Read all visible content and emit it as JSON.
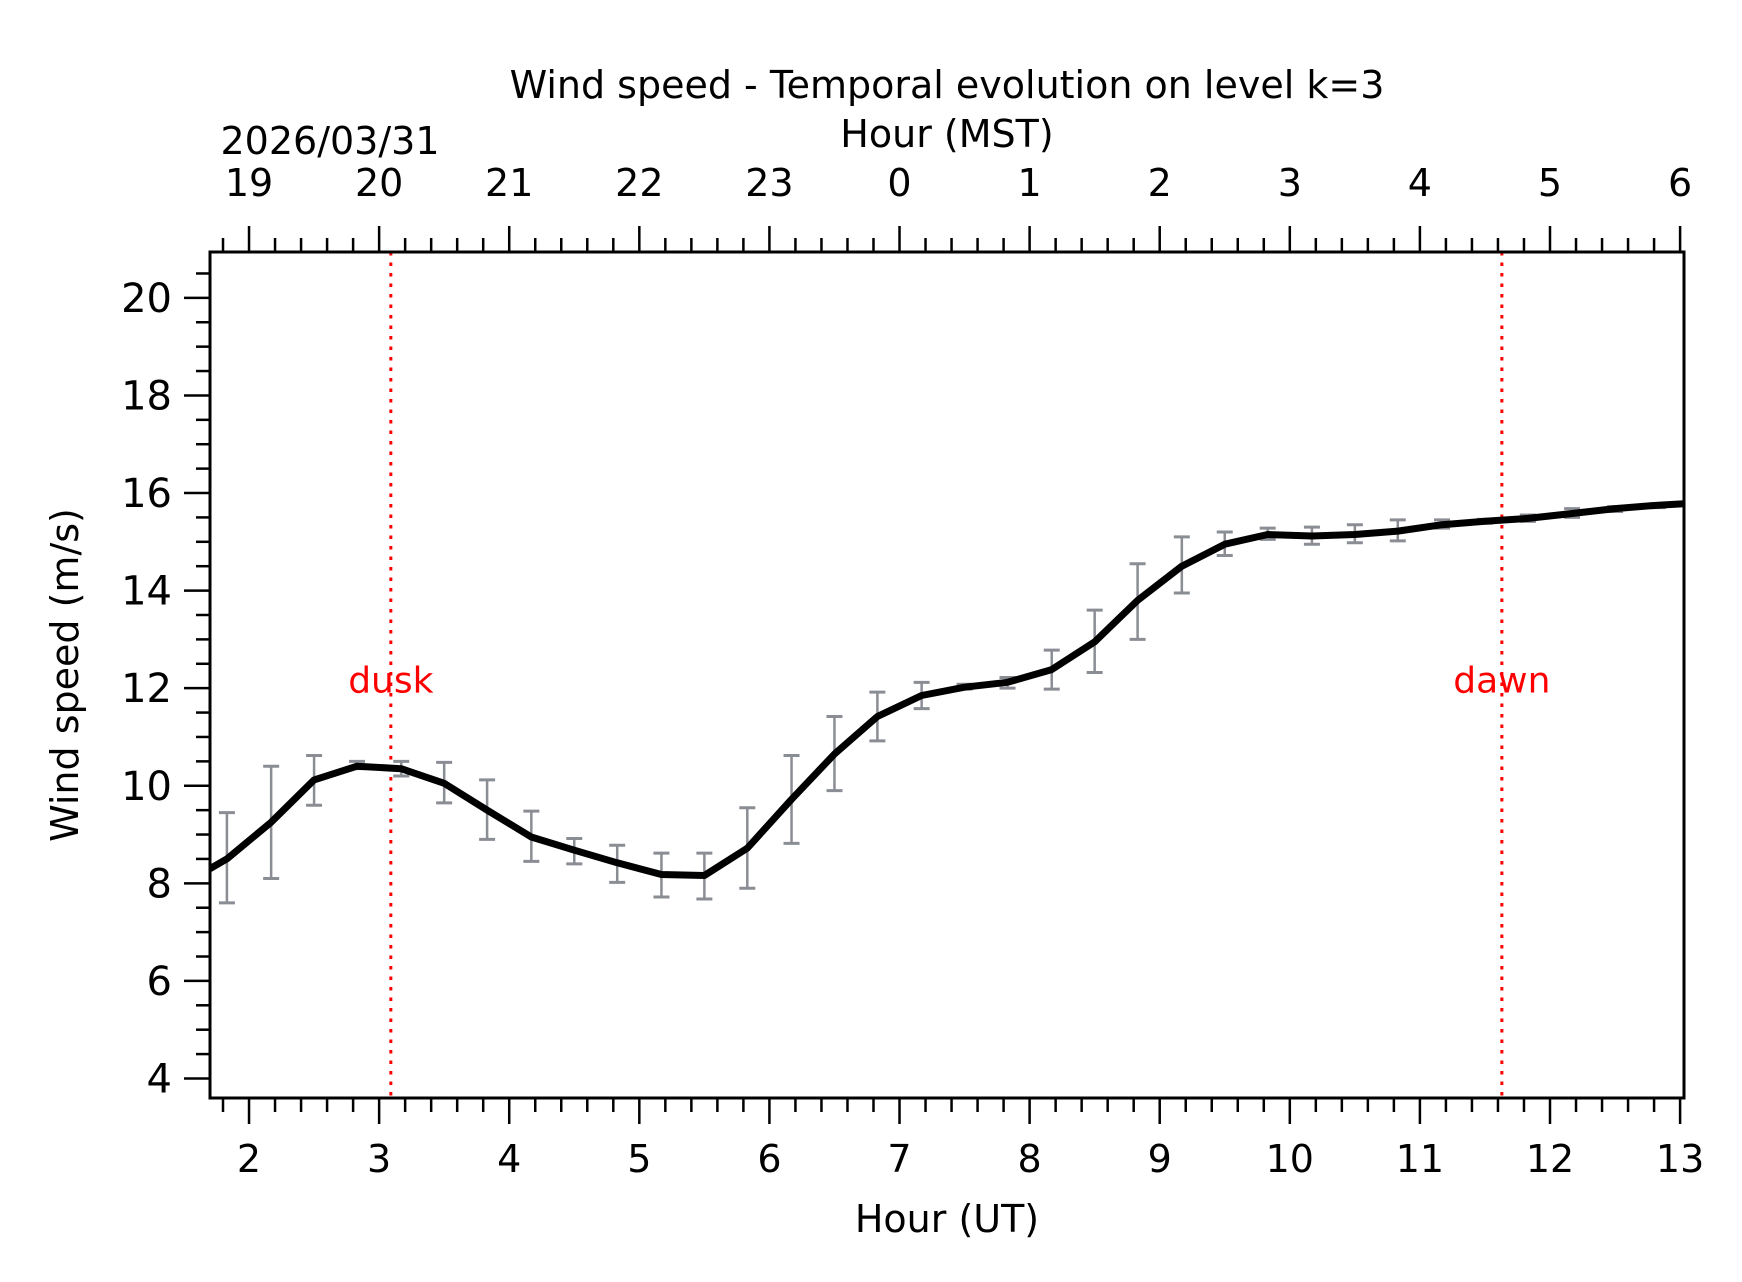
{
  "chart_data": {
    "type": "line",
    "title": "Wind speed - Temporal evolution on level k=3",
    "xlabel": "Hour (UT)",
    "ylabel": "Wind speed (m/s)",
    "top_xlabel": "Hour (MST)",
    "date_label": "2026/03/31",
    "xlim": [
      1.7,
      13.03
    ],
    "ylim": [
      3.6,
      20.94
    ],
    "grid": false,
    "x_ticks": [
      2,
      3,
      4,
      5,
      6,
      7,
      8,
      9,
      10,
      11,
      12,
      13
    ],
    "x_tick_labels": [
      "2",
      "3",
      "4",
      "5",
      "6",
      "7",
      "8",
      "9",
      "10",
      "11",
      "12",
      "13"
    ],
    "top_tick_labels": [
      "19",
      "20",
      "21",
      "22",
      "23",
      "0",
      "1",
      "2",
      "3",
      "4",
      "5",
      "6"
    ],
    "y_ticks": [
      4,
      6,
      8,
      10,
      12,
      14,
      16,
      18,
      20
    ],
    "y_tick_labels": [
      "4",
      "6",
      "8",
      "10",
      "12",
      "14",
      "16",
      "18",
      "20"
    ],
    "series": [
      {
        "name": "Wind speed",
        "color": "#000000",
        "x": [
          1.7,
          1.83,
          2.17,
          2.5,
          2.83,
          3.17,
          3.5,
          3.83,
          4.17,
          4.5,
          4.83,
          5.17,
          5.5,
          5.83,
          6.17,
          6.5,
          6.83,
          7.17,
          7.5,
          7.83,
          8.17,
          8.5,
          8.83,
          9.17,
          9.5,
          9.83,
          10.17,
          10.5,
          10.83,
          11.17,
          11.5,
          11.83,
          12.17,
          12.5,
          12.83,
          13.03
        ],
        "y": [
          8.3,
          8.5,
          9.25,
          10.12,
          10.4,
          10.35,
          10.05,
          9.5,
          8.95,
          8.68,
          8.42,
          8.18,
          8.16,
          8.72,
          9.72,
          10.65,
          11.42,
          11.85,
          12.02,
          12.12,
          12.38,
          12.95,
          13.8,
          14.5,
          14.95,
          15.15,
          15.12,
          15.15,
          15.22,
          15.35,
          15.42,
          15.48,
          15.58,
          15.68,
          15.75,
          15.78
        ]
      }
    ],
    "error_bars": {
      "color": "#8a8d94",
      "x": [
        1.83,
        2.17,
        2.5,
        2.83,
        3.17,
        3.5,
        3.83,
        4.17,
        4.5,
        4.83,
        5.17,
        5.5,
        5.83,
        6.17,
        6.5,
        6.83,
        7.17,
        7.5,
        7.83,
        8.17,
        8.5,
        8.83,
        9.17,
        9.5,
        9.83,
        10.17,
        10.5,
        10.83,
        11.17,
        11.5,
        11.83,
        12.17,
        12.5,
        12.83
      ],
      "low": [
        7.6,
        8.1,
        9.6,
        10.35,
        10.2,
        9.65,
        8.9,
        8.45,
        8.4,
        8.02,
        7.72,
        7.68,
        7.9,
        8.82,
        9.9,
        10.92,
        11.58,
        11.98,
        12.0,
        11.98,
        12.32,
        13.0,
        13.95,
        14.72,
        15.05,
        14.95,
        14.98,
        15.02,
        15.28,
        15.38,
        15.42,
        15.5,
        15.62,
        15.7
      ],
      "high": [
        9.45,
        10.4,
        10.62,
        10.5,
        10.5,
        10.48,
        10.12,
        9.48,
        8.92,
        8.78,
        8.62,
        8.62,
        9.55,
        10.62,
        11.42,
        11.92,
        12.12,
        12.08,
        12.22,
        12.78,
        13.6,
        14.55,
        15.1,
        15.2,
        15.28,
        15.3,
        15.35,
        15.45,
        15.45,
        15.46,
        15.55,
        15.68,
        15.72,
        15.78
      ]
    },
    "annotations": [
      {
        "label": "dusk",
        "x": 3.09,
        "y": 12.2,
        "color": "#ff0000"
      },
      {
        "label": "dawn",
        "x": 11.63,
        "y": 12.2,
        "color": "#ff0000"
      }
    ]
  }
}
